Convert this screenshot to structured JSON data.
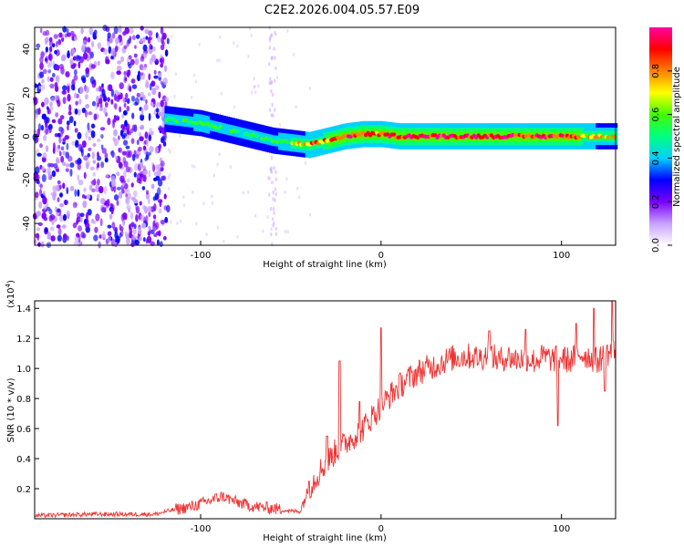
{
  "title": "C2E2.2026.004.05.57.E09",
  "chart_data": [
    {
      "type": "heatmap",
      "name": "spectrogram",
      "xlabel": "Height of straight line (km)",
      "ylabel": "Frequency (Hz)",
      "xlim": [
        -192,
        130
      ],
      "ylim": [
        -50,
        50
      ],
      "xticks": [
        -100,
        0,
        100
      ],
      "yticks": [
        -40,
        -20,
        0,
        20,
        40
      ],
      "colorbar": {
        "label": "Normalized spectral amplitude",
        "range": [
          0,
          1
        ],
        "ticks": [
          "0.0",
          "0.2",
          "0.4",
          "0.6",
          "0.8"
        ],
        "colors": [
          "#ffffff",
          "#c8a0ff",
          "#7a00ff",
          "#0000ff",
          "#00d0ff",
          "#00ff80",
          "#40ff00",
          "#ffff00",
          "#ff8000",
          "#ff0000",
          "#ff00a0"
        ]
      },
      "noise_region_x": [
        -192,
        -118
      ],
      "ridge": {
        "x": [
          -120,
          -110,
          -100,
          -90,
          -80,
          -70,
          -60,
          -50,
          -40,
          -30,
          -20,
          -10,
          0,
          10,
          20,
          40,
          60,
          80,
          100,
          120,
          130
        ],
        "y": [
          8,
          7,
          6,
          4,
          2,
          0,
          -2,
          -3,
          -4,
          -2,
          0,
          1,
          1,
          0,
          0,
          0,
          0,
          0,
          0,
          0,
          0
        ],
        "amplitude": [
          0.45,
          0.5,
          0.55,
          0.5,
          0.45,
          0.5,
          0.5,
          0.6,
          0.75,
          0.8,
          0.85,
          0.9,
          0.85,
          0.9,
          0.95,
          0.95,
          0.95,
          0.9,
          0.9,
          0.7,
          0.7
        ]
      }
    },
    {
      "type": "line",
      "name": "snr",
      "xlabel": "Height of straight line (km)",
      "ylabel": "SNR (10 * v/v)",
      "multiplier": "(x10",
      "multiplier_exp": "4",
      "multiplier_close": ")",
      "xlim": [
        -192,
        130
      ],
      "ylim": [
        0,
        1.45
      ],
      "xticks": [
        -100,
        0,
        100
      ],
      "yticks": [
        0.2,
        0.4,
        0.6,
        0.8,
        1.0,
        1.2,
        1.4
      ],
      "ytick_labels": [
        "0.2",
        "0.4",
        "0.6",
        "0.8",
        "1.0",
        "1.2",
        "1.4"
      ],
      "color": "#ee3333",
      "series": {
        "x": [
          -192,
          -160,
          -140,
          -125,
          -115,
          -105,
          -95,
          -88,
          -80,
          -70,
          -60,
          -50,
          -45,
          -40,
          -35,
          -30,
          -25,
          -20,
          -15,
          -10,
          -5,
          0,
          5,
          10,
          15,
          20,
          25,
          30,
          35,
          40,
          45,
          50,
          55,
          60,
          65,
          70,
          75,
          80,
          85,
          90,
          95,
          100,
          105,
          110,
          115,
          120,
          125,
          130
        ],
        "y": [
          0.02,
          0.03,
          0.03,
          0.03,
          0.06,
          0.08,
          0.12,
          0.15,
          0.11,
          0.08,
          0.07,
          0.05,
          0.05,
          0.2,
          0.3,
          0.38,
          0.45,
          0.5,
          0.55,
          0.6,
          0.68,
          0.75,
          0.82,
          0.88,
          0.93,
          0.97,
          1.0,
          1.02,
          1.05,
          1.07,
          1.08,
          1.08,
          1.07,
          1.1,
          1.05,
          1.08,
          1.06,
          1.07,
          1.05,
          1.08,
          1.06,
          1.07,
          1.05,
          1.1,
          1.08,
          1.05,
          1.1,
          1.12
        ],
        "spikes": [
          [
            -40,
            0.25
          ],
          [
            -30,
            0.55
          ],
          [
            -23,
            1.05
          ],
          [
            -12,
            0.78
          ],
          [
            0,
            1.27
          ],
          [
            60,
            1.25
          ],
          [
            80,
            1.26
          ],
          [
            98,
            0.62
          ],
          [
            108,
            1.3
          ],
          [
            118,
            1.4
          ],
          [
            124,
            0.85
          ],
          [
            128,
            1.45
          ]
        ]
      }
    }
  ]
}
